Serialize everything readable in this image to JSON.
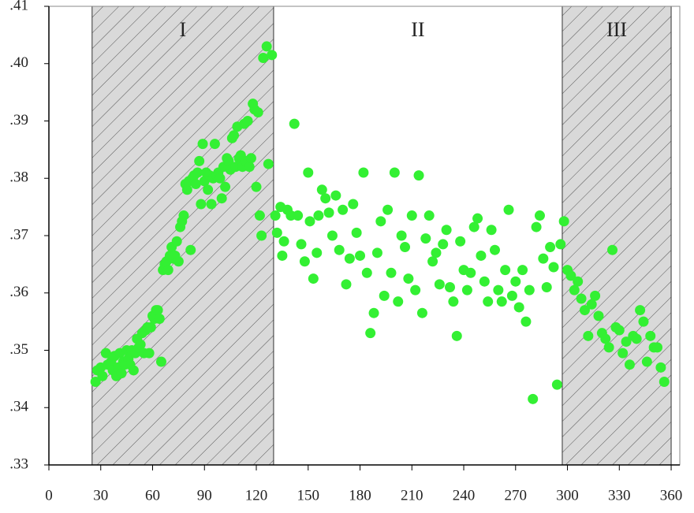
{
  "chart_data": {
    "type": "scatter",
    "color": "#33f033",
    "xlim": [
      0,
      365
    ],
    "ylim": [
      0.33,
      0.41
    ],
    "xticks": [
      0,
      30,
      60,
      90,
      120,
      150,
      180,
      210,
      240,
      270,
      300,
      330,
      360
    ],
    "yticks": [
      {
        "value": 0.33,
        "label": ".33"
      },
      {
        "value": 0.34,
        "label": ".34"
      },
      {
        "value": 0.35,
        "label": ".35"
      },
      {
        "value": 0.36,
        "label": ".36"
      },
      {
        "value": 0.37,
        "label": ".37"
      },
      {
        "value": 0.38,
        "label": ".38"
      },
      {
        "value": 0.39,
        "label": ".39"
      },
      {
        "value": 0.4,
        "label": ".40"
      },
      {
        "value": 0.41,
        "label": ".41"
      }
    ],
    "regions": [
      {
        "label": "I",
        "start": 25,
        "end": 130,
        "shaded": true
      },
      {
        "label": "II",
        "start": 130,
        "end": 297,
        "shaded": false
      },
      {
        "label": "III",
        "start": 297,
        "end": 360,
        "shaded": true
      }
    ],
    "x": [
      27,
      28,
      30,
      31,
      33,
      34,
      36,
      37,
      38,
      39,
      40,
      41,
      42,
      43,
      44,
      45,
      46,
      47,
      48,
      49,
      50,
      51,
      52,
      53,
      54,
      55,
      56,
      57,
      58,
      59,
      60,
      61,
      62,
      63,
      64,
      65,
      66,
      67,
      68,
      69,
      70,
      71,
      72,
      73,
      74,
      75,
      76,
      77,
      78,
      79,
      80,
      81,
      82,
      83,
      84,
      85,
      86,
      87,
      88,
      89,
      90,
      91,
      92,
      93,
      94,
      95,
      96,
      97,
      98,
      99,
      100,
      101,
      102,
      103,
      104,
      105,
      106,
      107,
      108,
      109,
      110,
      111,
      112,
      113,
      114,
      115,
      116,
      117,
      118,
      119,
      120,
      121,
      122,
      123,
      124,
      126,
      127,
      129,
      131,
      132,
      134,
      135,
      136,
      138,
      140,
      142,
      144,
      146,
      148,
      150,
      151,
      153,
      155,
      156,
      158,
      160,
      162,
      164,
      166,
      168,
      170,
      172,
      174,
      176,
      178,
      180,
      182,
      184,
      186,
      188,
      190,
      192,
      194,
      196,
      198,
      200,
      202,
      204,
      206,
      208,
      210,
      212,
      214,
      216,
      218,
      220,
      222,
      224,
      226,
      228,
      230,
      232,
      234,
      236,
      238,
      240,
      242,
      244,
      246,
      248,
      250,
      252,
      254,
      256,
      258,
      260,
      262,
      264,
      266,
      268,
      270,
      272,
      274,
      276,
      278,
      280,
      282,
      284,
      286,
      288,
      290,
      292,
      294,
      296,
      298,
      300,
      302,
      304,
      306,
      308,
      310,
      312,
      314,
      316,
      318,
      320,
      322,
      324,
      326,
      328,
      330,
      332,
      334,
      336,
      338,
      340,
      342,
      344,
      346,
      348,
      350,
      352,
      354,
      356
    ],
    "y": [
      0.3445,
      0.3465,
      0.347,
      0.3455,
      0.3495,
      0.3475,
      0.348,
      0.3465,
      0.349,
      0.3455,
      0.347,
      0.3495,
      0.346,
      0.348,
      0.3475,
      0.35,
      0.3485,
      0.3475,
      0.35,
      0.3465,
      0.3495,
      0.352,
      0.3505,
      0.351,
      0.353,
      0.3495,
      0.3535,
      0.354,
      0.3495,
      0.354,
      0.356,
      0.3555,
      0.357,
      0.357,
      0.3555,
      0.348,
      0.364,
      0.365,
      0.3655,
      0.364,
      0.3665,
      0.368,
      0.366,
      0.3665,
      0.369,
      0.3655,
      0.3715,
      0.3725,
      0.3735,
      0.379,
      0.378,
      0.3795,
      0.3675,
      0.38,
      0.3805,
      0.379,
      0.381,
      0.383,
      0.3755,
      0.386,
      0.3795,
      0.381,
      0.378,
      0.3805,
      0.3755,
      0.38,
      0.386,
      0.3805,
      0.381,
      0.38,
      0.3765,
      0.382,
      0.3785,
      0.3835,
      0.383,
      0.3815,
      0.387,
      0.3875,
      0.382,
      0.389,
      0.3835,
      0.384,
      0.382,
      0.3895,
      0.383,
      0.39,
      0.382,
      0.3835,
      0.393,
      0.392,
      0.3785,
      0.3915,
      0.3735,
      0.37,
      0.401,
      0.403,
      0.3825,
      0.4015,
      0.3735,
      0.3705,
      0.375,
      0.3665,
      0.369,
      0.3745,
      0.3735,
      0.3895,
      0.3735,
      0.3685,
      0.3655,
      0.381,
      0.3725,
      0.3625,
      0.367,
      0.3735,
      0.378,
      0.3765,
      0.374,
      0.37,
      0.377,
      0.3675,
      0.3745,
      0.3615,
      0.366,
      0.3755,
      0.3705,
      0.3665,
      0.381,
      0.3635,
      0.353,
      0.3565,
      0.367,
      0.3725,
      0.3595,
      0.3745,
      0.3635,
      0.381,
      0.3585,
      0.37,
      0.368,
      0.3625,
      0.3735,
      0.3605,
      0.3805,
      0.3565,
      0.3695,
      0.3735,
      0.3655,
      0.367,
      0.3615,
      0.3685,
      0.371,
      0.361,
      0.3585,
      0.3525,
      0.369,
      0.364,
      0.3605,
      0.3635,
      0.3715,
      0.373,
      0.3665,
      0.362,
      0.3585,
      0.371,
      0.3675,
      0.3605,
      0.3585,
      0.364,
      0.3745,
      0.3595,
      0.362,
      0.3575,
      0.364,
      0.355,
      0.3605,
      0.3415,
      0.3715,
      0.3735,
      0.366,
      0.361,
      0.368,
      0.3645,
      0.344,
      0.3685,
      0.3725,
      0.364,
      0.363,
      0.3605,
      0.362,
      0.359,
      0.357,
      0.3525,
      0.358,
      0.3595,
      0.356,
      0.353,
      0.352,
      0.3505,
      0.3675,
      0.354,
      0.3535,
      0.3495,
      0.3515,
      0.3475,
      0.3525,
      0.352,
      0.357,
      0.355,
      0.348,
      0.3525,
      0.3505,
      0.3505,
      0.347,
      0.3445
    ],
    "grid": false
  }
}
